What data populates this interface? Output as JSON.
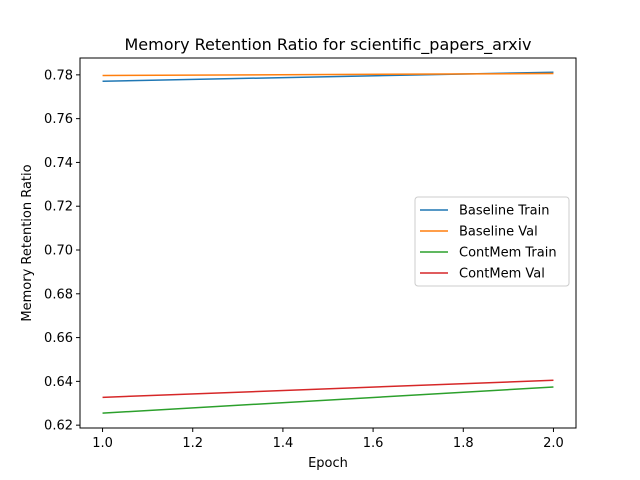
{
  "chart_data": {
    "type": "line",
    "title": "Memory Retention Ratio for scientific_papers_arxiv",
    "xlabel": "Epoch",
    "ylabel": "Memory Retention Ratio",
    "xlim": [
      0.95,
      2.05
    ],
    "ylim": [
      0.6187,
      0.7877
    ],
    "xticks": [
      1.0,
      1.2,
      1.4,
      1.6,
      1.8,
      2.0
    ],
    "xtick_labels": [
      "1.0",
      "1.2",
      "1.4",
      "1.6",
      "1.8",
      "2.0"
    ],
    "yticks": [
      0.62,
      0.64,
      0.66,
      0.68,
      0.7,
      0.72,
      0.74,
      0.76,
      0.78
    ],
    "ytick_labels": [
      "0.62",
      "0.64",
      "0.66",
      "0.68",
      "0.70",
      "0.72",
      "0.74",
      "0.76",
      "0.78"
    ],
    "grid": false,
    "legend_position": "center-right",
    "series": [
      {
        "name": "Baseline Train",
        "color": "#1f77b4",
        "x": [
          1,
          2
        ],
        "y": [
          0.7771,
          0.7812
        ]
      },
      {
        "name": "Baseline Val",
        "color": "#ff7f0e",
        "x": [
          1,
          2
        ],
        "y": [
          0.7797,
          0.7806
        ]
      },
      {
        "name": "ContMem Train",
        "color": "#2ca02c",
        "x": [
          1,
          2
        ],
        "y": [
          0.6255,
          0.6374
        ]
      },
      {
        "name": "ContMem Val",
        "color": "#d62728",
        "x": [
          1,
          2
        ],
        "y": [
          0.6327,
          0.6405
        ]
      }
    ]
  }
}
